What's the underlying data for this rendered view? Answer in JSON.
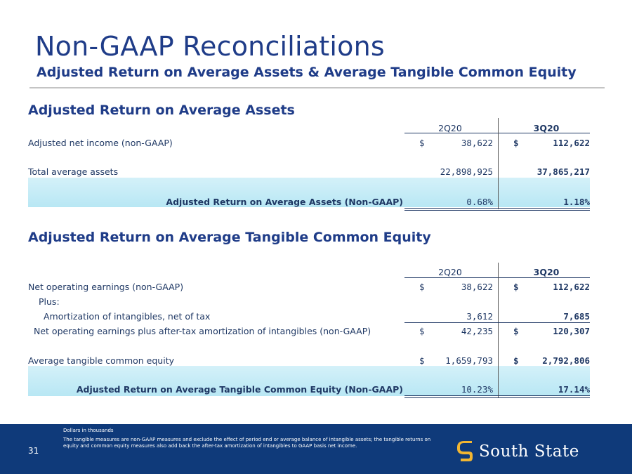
{
  "header": {
    "title": "Non-GAAP Reconciliations",
    "subtitle": "Adjusted Return on Average Assets & Average Tangible Common Equity"
  },
  "roaa": {
    "section_title": "Adjusted Return on Average Assets",
    "col1": "2Q20",
    "col2": "3Q20",
    "rows": [
      {
        "label": "Adjusted net income (non-GAAP)",
        "d1": "$",
        "v1": "38,622",
        "d2": "$",
        "v2": "112,622"
      },
      {
        "label": "Total average assets",
        "d1": "",
        "v1": "22,898,925",
        "d2": "",
        "v2": "37,865,217"
      }
    ],
    "result": {
      "label": "Adjusted Return on Average Assets (Non-GAAP)",
      "v1": "0.68%",
      "v2": "1.18%"
    }
  },
  "rotce": {
    "section_title": "Adjusted Return on Average Tangible Common Equity",
    "col1": "2Q20",
    "col2": "3Q20",
    "rows": [
      {
        "label": "Net operating earnings (non-GAAP)",
        "d1": "$",
        "v1": "38,622",
        "d2": "$",
        "v2": "112,622"
      },
      {
        "label": "Plus:",
        "d1": "",
        "v1": "",
        "d2": "",
        "v2": ""
      },
      {
        "label": "Amortization of intangibles, net of tax",
        "d1": "",
        "v1": "3,612",
        "d2": "",
        "v2": "7,685"
      },
      {
        "label": "Net operating earnings plus after-tax amortization of intangibles (non-GAAP)",
        "d1": "$",
        "v1": "42,235",
        "d2": "$",
        "v2": "120,307"
      },
      {
        "label": "Average tangible common equity",
        "d1": "$",
        "v1": "1,659,793",
        "d2": "$",
        "v2": "2,792,806"
      }
    ],
    "result": {
      "label": "Adjusted Return on Average Tangible Common Equity (Non-GAAP)",
      "v1": "10.23%",
      "v2": "17.14%"
    }
  },
  "footer": {
    "page_number": "31",
    "note_units": "Dollars in thousands",
    "note_definition": "The tangible measures are non-GAAP measures and exclude the effect of period end or average balance of intangible assets; the tangible returns on equity and common equity measures also add back the after-tax amortization of intangibles to GAAP basis net income.",
    "logo_text": "South State",
    "colors": {
      "footer_bg": "#0f3a7a",
      "title": "#1f3c88",
      "band": "#c6ecf7",
      "logo_gold": "#f2b632"
    }
  }
}
